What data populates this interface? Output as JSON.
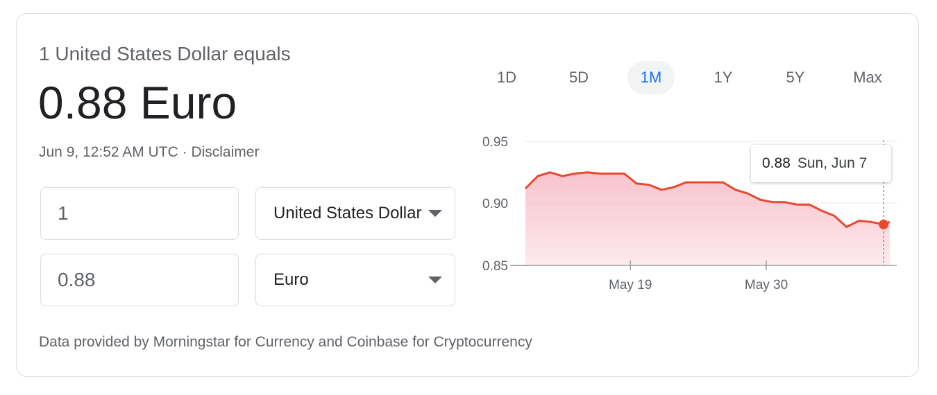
{
  "header": {
    "subtitle": "1 United States Dollar equals",
    "result": "0.88 Euro",
    "timestamp": "Jun 9, 12:52 AM UTC · ",
    "disclaimer_label": "Disclaimer"
  },
  "converter": {
    "from_amount": "1",
    "from_currency": "United States Dollar",
    "to_amount": "0.88",
    "to_currency": "Euro"
  },
  "tabs": [
    {
      "label": "1D"
    },
    {
      "label": "5D"
    },
    {
      "label": "1M",
      "active": true
    },
    {
      "label": "1Y"
    },
    {
      "label": "5Y"
    },
    {
      "label": "Max"
    }
  ],
  "tooltip": {
    "value": "0.88",
    "date": "Sun, Jun 7"
  },
  "footer": {
    "text": "Data provided by Morningstar for Currency and Coinbase for Cryptocurrency"
  },
  "colors": {
    "line": "#e8492f",
    "fill": "#f8c6ce",
    "accent": "#1a73e8"
  },
  "chart_data": {
    "type": "area",
    "y_ticks": [
      "0.95",
      "0.90",
      "0.85"
    ],
    "ylim": [
      0.85,
      0.95
    ],
    "x_tick_labels": [
      {
        "label": "May 19",
        "x": 13.5
      },
      {
        "label": "May 30",
        "x": 24.5
      }
    ],
    "xlim": [
      5,
      34.5
    ],
    "x": [
      5,
      6,
      7,
      8,
      9,
      10,
      11,
      12,
      13,
      14,
      15,
      16,
      17,
      18,
      19,
      20,
      21,
      22,
      23,
      24,
      25,
      26,
      27,
      28,
      29,
      30,
      31,
      32,
      33,
      34,
      34.5
    ],
    "values": [
      0.912,
      0.922,
      0.925,
      0.922,
      0.924,
      0.925,
      0.924,
      0.924,
      0.924,
      0.916,
      0.915,
      0.911,
      0.913,
      0.917,
      0.917,
      0.917,
      0.917,
      0.911,
      0.908,
      0.903,
      0.901,
      0.901,
      0.899,
      0.899,
      0.894,
      0.89,
      0.881,
      0.886,
      0.885,
      0.883,
      0.885
    ],
    "highlight_index": 29
  }
}
